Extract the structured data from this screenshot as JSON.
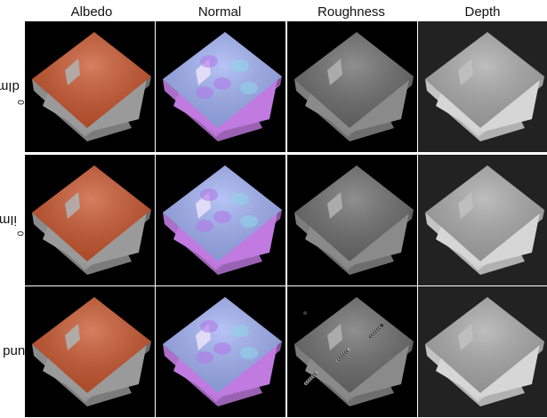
{
  "columns": [
    "Albedo",
    "Normal",
    "Roughness",
    "Depth"
  ],
  "rows": [
    {
      "label_main": "dIm-C",
      "label_sub": "0"
    },
    {
      "label_main": "iIm-C",
      "label_sub": "0"
    },
    {
      "label_main": "Ground truth",
      "label_sub": ""
    }
  ],
  "colors": {
    "albedo_top": "#c8542c",
    "albedo_side": "#9a9a9a",
    "normal_top": "#9fb0f4",
    "normal_side": "#c07ae0",
    "roughness_top": "#6a6a6a",
    "roughness_side": "#8a8a8a",
    "depth_top": "#a8a8a8",
    "depth_side": "#d6d6d6",
    "depth_bg": "#222222"
  }
}
